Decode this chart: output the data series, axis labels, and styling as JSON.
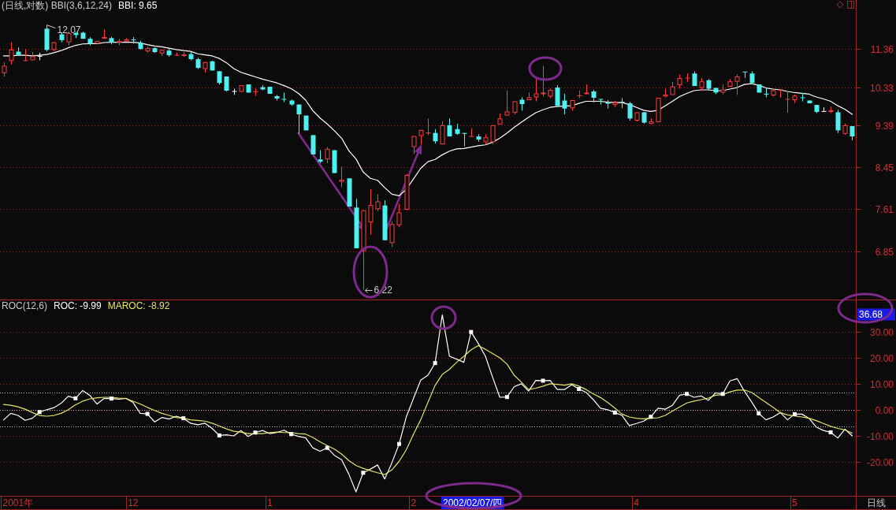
{
  "chart_data": [
    {
      "type": "candlestick",
      "title": "(日线,对数) BBI(3,6,12,24)",
      "ohlc": [
        [
          10.7,
          10.99,
          10.61,
          10.9
        ],
        [
          11.03,
          11.56,
          10.93,
          11.35
        ],
        [
          11.29,
          11.41,
          11.2,
          11.2
        ],
        [
          11.03,
          11.37,
          11.03,
          11.04
        ],
        [
          11.05,
          11.28,
          11.05,
          11.16
        ],
        [
          11.16,
          11.26,
          11.05,
          11.16
        ],
        [
          11.96,
          12.07,
          11.3,
          11.34
        ],
        [
          11.34,
          11.56,
          11.3,
          11.56
        ],
        [
          11.79,
          11.85,
          11.56,
          11.62
        ],
        [
          11.56,
          11.83,
          11.47,
          11.83
        ],
        [
          11.83,
          11.87,
          11.68,
          11.77
        ],
        [
          11.84,
          11.87,
          11.66,
          11.66
        ],
        [
          11.66,
          11.71,
          11.47,
          11.52
        ],
        [
          11.52,
          11.6,
          11.52,
          11.6
        ],
        [
          11.66,
          11.94,
          11.66,
          11.71
        ],
        [
          11.68,
          11.72,
          11.5,
          11.55
        ],
        [
          11.55,
          11.66,
          11.47,
          11.6
        ],
        [
          11.58,
          11.68,
          11.58,
          11.64
        ],
        [
          11.63,
          11.71,
          11.52,
          11.61
        ],
        [
          11.54,
          11.6,
          11.35,
          11.37
        ],
        [
          11.3,
          11.43,
          11.26,
          11.39
        ],
        [
          11.39,
          11.41,
          11.26,
          11.28
        ],
        [
          11.24,
          11.34,
          11.17,
          11.34
        ],
        [
          11.32,
          11.37,
          11.15,
          11.19
        ],
        [
          11.18,
          11.26,
          11.17,
          11.19
        ],
        [
          11.17,
          11.28,
          11.15,
          11.21
        ],
        [
          11.22,
          11.28,
          11.05,
          11.08
        ],
        [
          11.08,
          11.12,
          10.81,
          10.84
        ],
        [
          10.81,
          11.0,
          10.71,
          11.0
        ],
        [
          11.02,
          11.04,
          10.77,
          10.77
        ],
        [
          10.75,
          10.75,
          10.4,
          10.44
        ],
        [
          10.61,
          10.61,
          10.22,
          10.24
        ],
        [
          10.22,
          10.29,
          10.13,
          10.22
        ],
        [
          10.21,
          10.38,
          10.21,
          10.38
        ],
        [
          10.4,
          10.4,
          10.19,
          10.19
        ],
        [
          10.19,
          10.29,
          10.11,
          10.21
        ],
        [
          10.33,
          10.38,
          10.25,
          10.27
        ],
        [
          10.34,
          10.34,
          10.16,
          10.16
        ],
        [
          10.1,
          10.13,
          9.99,
          10.04
        ],
        [
          10.03,
          10.19,
          9.95,
          10.01
        ],
        [
          9.99,
          10.01,
          9.86,
          9.89
        ],
        [
          9.89,
          9.89,
          9.19,
          9.65
        ],
        [
          9.62,
          9.62,
          9.27,
          9.27
        ],
        [
          9.16,
          9.16,
          8.73,
          8.73
        ],
        [
          8.62,
          8.82,
          8.54,
          8.57
        ],
        [
          8.62,
          8.89,
          8.54,
          8.85
        ],
        [
          8.82,
          8.82,
          8.33,
          8.33
        ],
        [
          8.15,
          8.46,
          8.04,
          8.19
        ],
        [
          8.22,
          8.22,
          7.66,
          7.66
        ],
        [
          7.64,
          7.81,
          6.9,
          6.9
        ],
        [
          6.85,
          7.59,
          6.22,
          7.59
        ],
        [
          7.36,
          8.0,
          7.14,
          7.69
        ],
        [
          7.61,
          7.9,
          7.57,
          7.76
        ],
        [
          7.68,
          7.78,
          7.04,
          7.04
        ],
        [
          6.99,
          7.38,
          6.92,
          7.33
        ],
        [
          7.31,
          7.71,
          7.27,
          7.55
        ],
        [
          7.6,
          8.31,
          7.59,
          8.29
        ],
        [
          8.89,
          9.14,
          8.74,
          9.14
        ],
        [
          9.14,
          9.28,
          8.95,
          9.28
        ],
        [
          9.2,
          9.55,
          9.16,
          9.22
        ],
        [
          9.21,
          9.3,
          8.97,
          9.02
        ],
        [
          8.95,
          9.48,
          8.95,
          9.39
        ],
        [
          9.39,
          9.55,
          9.13,
          9.13
        ],
        [
          9.3,
          9.42,
          9.17,
          9.19
        ],
        [
          9.21,
          9.21,
          8.91,
          9.19
        ],
        [
          9.12,
          9.32,
          9.12,
          9.13
        ],
        [
          9.13,
          9.18,
          9.01,
          9.06
        ],
        [
          9.0,
          9.18,
          8.95,
          9.11
        ],
        [
          9.0,
          9.39,
          8.95,
          9.39
        ],
        [
          9.41,
          9.67,
          9.41,
          9.55
        ],
        [
          9.62,
          10.24,
          9.62,
          9.72
        ],
        [
          9.69,
          9.97,
          9.65,
          9.97
        ],
        [
          10.01,
          10.07,
          9.74,
          9.9
        ],
        [
          10.0,
          10.2,
          10.0,
          10.07
        ],
        [
          10.07,
          10.57,
          9.97,
          10.17
        ],
        [
          10.15,
          10.9,
          10.09,
          10.19
        ],
        [
          10.09,
          10.29,
          10.05,
          10.26
        ],
        [
          10.32,
          10.38,
          9.86,
          9.86
        ],
        [
          9.99,
          10.16,
          9.65,
          9.79
        ],
        [
          9.8,
          10.0,
          9.74,
          10.0
        ],
        [
          10.1,
          10.24,
          10.05,
          10.12
        ],
        [
          10.15,
          10.4,
          10.15,
          10.19
        ],
        [
          10.22,
          10.26,
          9.94,
          10.06
        ],
        [
          10.02,
          10.02,
          9.89,
          10.01
        ],
        [
          9.94,
          10.0,
          9.79,
          9.91
        ],
        [
          9.88,
          9.98,
          9.83,
          9.94
        ],
        [
          9.95,
          10.05,
          9.8,
          9.94
        ],
        [
          9.92,
          9.96,
          9.5,
          9.55
        ],
        [
          9.5,
          9.7,
          9.48,
          9.7
        ],
        [
          9.7,
          9.7,
          9.43,
          9.45
        ],
        [
          9.42,
          9.55,
          9.42,
          9.48
        ],
        [
          9.46,
          10.06,
          9.46,
          10.06
        ],
        [
          10.09,
          10.29,
          10.07,
          10.14
        ],
        [
          10.13,
          10.47,
          10.13,
          10.35
        ],
        [
          10.38,
          10.66,
          10.29,
          10.57
        ],
        [
          10.56,
          10.69,
          10.47,
          10.57
        ],
        [
          10.69,
          10.75,
          10.36,
          10.36
        ],
        [
          10.31,
          10.57,
          10.24,
          10.48
        ],
        [
          10.51,
          10.54,
          10.24,
          10.29
        ],
        [
          10.31,
          10.31,
          10.15,
          10.19
        ],
        [
          10.19,
          10.4,
          10.15,
          10.27
        ],
        [
          10.34,
          10.54,
          10.34,
          10.48
        ],
        [
          10.47,
          10.66,
          10.13,
          10.61
        ],
        [
          10.73,
          10.73,
          10.57,
          10.72
        ],
        [
          10.69,
          10.75,
          10.4,
          10.44
        ],
        [
          10.4,
          10.4,
          10.19,
          10.19
        ],
        [
          10.15,
          10.31,
          10.07,
          10.14
        ],
        [
          10.12,
          10.27,
          10.09,
          10.25
        ],
        [
          10.25,
          10.26,
          10.06,
          10.26
        ],
        [
          10.01,
          10.21,
          9.69,
          10.02
        ],
        [
          10.0,
          10.14,
          9.93,
          10.11
        ],
        [
          10.06,
          10.18,
          9.97,
          10.05
        ],
        [
          9.99,
          9.99,
          9.92,
          9.92
        ],
        [
          9.88,
          9.88,
          9.68,
          9.71
        ],
        [
          9.72,
          9.82,
          9.72,
          9.72
        ],
        [
          9.71,
          9.84,
          9.68,
          9.75
        ],
        [
          9.7,
          9.76,
          9.21,
          9.27
        ],
        [
          9.19,
          9.43,
          9.17,
          9.39
        ],
        [
          9.37,
          9.37,
          9.04,
          9.13
        ]
      ],
      "colors": [
        "#ff3c3c",
        "#ff3c3c",
        "#4ff0f0",
        "#ff3c3c",
        "#ff3c3c",
        "#ffffff",
        "#4ff0f0",
        "#ff3c3c",
        "#4ff0f0",
        "#ff3c3c",
        "#4ff0f0",
        "#4ff0f0",
        "#4ff0f0",
        "#ff3c3c",
        "#ff3c3c",
        "#4ff0f0",
        "#ff3c3c",
        "#ff3c3c",
        "#4ff0f0",
        "#4ff0f0",
        "#ff3c3c",
        "#4ff0f0",
        "#ff3c3c",
        "#4ff0f0",
        "#ff3c3c",
        "#ff3c3c",
        "#4ff0f0",
        "#4ff0f0",
        "#ff3c3c",
        "#4ff0f0",
        "#4ff0f0",
        "#4ff0f0",
        "#ffffff",
        "#ff3c3c",
        "#4ff0f0",
        "#ff3c3c",
        "#4ff0f0",
        "#4ff0f0",
        "#4ff0f0",
        "#4ff0f0",
        "#4ff0f0",
        "#4ff0f0",
        "#4ff0f0",
        "#4ff0f0",
        "#4ff0f0",
        "#ff3c3c",
        "#4ff0f0",
        "#ff3c3c",
        "#4ff0f0",
        "#4ff0f0",
        "#ff3c3c",
        "#ff3c3c",
        "#ff3c3c",
        "#4ff0f0",
        "#ff3c3c",
        "#ff3c3c",
        "#ff3c3c",
        "#ff3c3c",
        "#ff3c3c",
        "#ff3c3c",
        "#4ff0f0",
        "#ff3c3c",
        "#4ff0f0",
        "#4ff0f0",
        "#4ff0f0",
        "#ff3c3c",
        "#4ff0f0",
        "#ff3c3c",
        "#ff3c3c",
        "#ff3c3c",
        "#ff3c3c",
        "#ff3c3c",
        "#4ff0f0",
        "#ff3c3c",
        "#ff3c3c",
        "#ff3c3c",
        "#ff3c3c",
        "#4ff0f0",
        "#4ff0f0",
        "#ff3c3c",
        "#ff3c3c",
        "#ff3c3c",
        "#4ff0f0",
        "#4ff0f0",
        "#4ff0f0",
        "#ff3c3c",
        "#4ff0f0",
        "#4ff0f0",
        "#ff3c3c",
        "#4ff0f0",
        "#ff3c3c",
        "#ff3c3c",
        "#ff3c3c",
        "#ff3c3c",
        "#ff3c3c",
        "#ff3c3c",
        "#4ff0f0",
        "#ff3c3c",
        "#4ff0f0",
        "#4ff0f0",
        "#ff3c3c",
        "#ff3c3c",
        "#ff3c3c",
        "#4ff0f0",
        "#4ff0f0",
        "#4ff0f0",
        "#4ff0f0",
        "#ff3c3c",
        "#ff3c3c",
        "#ff3c3c",
        "#ff3c3c",
        "#4ff0f0",
        "#4ff0f0",
        "#4ff0f0",
        "#ffffff",
        "#ff3c3c",
        "#4ff0f0",
        "#ff3c3c",
        "#4ff0f0"
      ],
      "series": [
        {
          "name": "BBI: 9.65",
          "type": "line",
          "color": "#ffffff",
          "values": [
            11.17,
            11.17,
            11.19,
            11.19,
            11.17,
            11.19,
            11.21,
            11.26,
            11.32,
            11.4,
            11.47,
            11.51,
            11.52,
            11.52,
            11.55,
            11.56,
            11.56,
            11.56,
            11.56,
            11.54,
            11.49,
            11.45,
            11.43,
            11.39,
            11.35,
            11.32,
            11.3,
            11.23,
            11.2,
            11.17,
            11.1,
            10.98,
            10.82,
            10.72,
            10.66,
            10.6,
            10.54,
            10.49,
            10.44,
            10.37,
            10.29,
            10.17,
            10.0,
            9.74,
            9.56,
            9.42,
            9.26,
            9.09,
            8.81,
            8.63,
            8.35,
            8.22,
            8.18,
            8.03,
            7.9,
            7.87,
            8.0,
            8.21,
            8.43,
            8.57,
            8.62,
            8.72,
            8.8,
            8.85,
            8.86,
            8.89,
            8.92,
            8.94,
            9.0,
            9.09,
            9.21,
            9.34,
            9.46,
            9.58,
            9.69,
            9.76,
            9.82,
            9.84,
            9.85,
            9.86,
            9.92,
            9.97,
            9.97,
            9.97,
            9.95,
            9.94,
            9.94,
            9.89,
            9.82,
            9.75,
            9.72,
            9.75,
            9.86,
            9.97,
            10.09,
            10.17,
            10.24,
            10.26,
            10.26,
            10.24,
            10.24,
            10.28,
            10.32,
            10.4,
            10.42,
            10.38,
            10.31,
            10.28,
            10.26,
            10.22,
            10.19,
            10.17,
            10.15,
            10.08,
            10.03,
            9.97,
            9.86,
            9.77,
            9.65
          ]
        }
      ],
      "log": true,
      "ylim": [
        6.08,
        12.85
      ],
      "yticks": [
        11.36,
        10.33,
        9.39,
        8.45,
        7.61,
        6.85
      ],
      "grid": "y",
      "legend": "top left",
      "tick_labels": "y",
      "annotations": [
        "12.07",
        "6.22"
      ]
    },
    {
      "type": "line",
      "title": "ROC(12,6)",
      "categories": [
        null,
        null,
        "2001年",
        null,
        null,
        null,
        null,
        null,
        null,
        null,
        null,
        null,
        null,
        null,
        null,
        null,
        null,
        null,
        "12",
        null,
        null,
        null,
        null,
        null,
        null,
        null,
        null,
        null,
        null,
        null,
        null,
        null,
        null,
        null,
        null,
        null,
        null,
        "1",
        null,
        null,
        null,
        null,
        null,
        null,
        null,
        null,
        null,
        null,
        null,
        null,
        null,
        null,
        null,
        null,
        null,
        null,
        null,
        "2",
        null,
        null,
        null,
        null,
        null,
        null,
        null,
        null,
        null,
        null,
        null,
        null,
        null,
        null,
        null,
        null,
        null,
        null,
        null,
        null,
        null,
        null,
        null,
        null,
        null,
        null,
        null,
        null,
        null,
        null,
        "4",
        null,
        null,
        null,
        null,
        null,
        null,
        null,
        null,
        null,
        null,
        null,
        null,
        null,
        null,
        null,
        null,
        null,
        null,
        null,
        null,
        null,
        "5",
        null,
        null,
        null,
        null,
        null,
        null,
        null,
        null
      ],
      "series": [
        {
          "name": "ROC: -9.99",
          "color": "#ffffff",
          "values": [
            -3.8,
            -1.3,
            -2.1,
            -4.0,
            -3.2,
            -0.8,
            0.1,
            0.9,
            2.6,
            5.3,
            4.5,
            7.5,
            5.6,
            2.3,
            4.5,
            4.4,
            4.2,
            4.5,
            2.9,
            -1.3,
            -1.5,
            -4.6,
            -2.9,
            -3.5,
            -2.4,
            -3.2,
            -5.1,
            -5.7,
            -5.1,
            -7.1,
            -9.8,
            -9.6,
            -10.0,
            -7.9,
            -10.2,
            -8.7,
            -7.9,
            -9.1,
            -8.7,
            -7.8,
            -9.3,
            -10.2,
            -10.7,
            -14.6,
            -15.9,
            -14.6,
            -17.5,
            -19.2,
            -24.7,
            -31.6,
            -24.2,
            -22.8,
            -21.2,
            -26.6,
            -20.3,
            -13.1,
            -2.6,
            4.5,
            11.5,
            13.4,
            18.1,
            36.68,
            20.7,
            19.6,
            18.4,
            30.1,
            25.7,
            20.7,
            12.6,
            4.9,
            5.0,
            9.0,
            10.1,
            7.3,
            11.4,
            11.3,
            11.4,
            7.9,
            7.9,
            9.8,
            8.1,
            6.8,
            4.0,
            0.7,
            0.1,
            -1.0,
            -2.1,
            -6.0,
            -5.2,
            -4.3,
            -2.6,
            0.7,
            0.3,
            1.8,
            5.7,
            6.2,
            4.9,
            5.4,
            3.7,
            6.6,
            6.2,
            11.2,
            12.1,
            7.3,
            3.2,
            -1.3,
            -3.8,
            -2.7,
            -1.0,
            -3.8,
            -1.6,
            -1.6,
            -3.2,
            -6.6,
            -7.9,
            -8.6,
            -10.8,
            -7.4,
            -9.99
          ]
        },
        {
          "name": "MAROC: -8.92",
          "color": "#e6e264",
          "values": [
            2.1,
            1.8,
            1.2,
            0.3,
            -1.0,
            -2.1,
            -2.4,
            -2.1,
            -1.3,
            0.1,
            2.0,
            3.4,
            4.3,
            4.7,
            4.9,
            4.9,
            4.6,
            4.4,
            3.4,
            2.3,
            1.0,
            -0.2,
            -1.3,
            -2.1,
            -2.9,
            -3.2,
            -3.8,
            -4.0,
            -4.3,
            -5.1,
            -6.2,
            -7.3,
            -8.2,
            -8.5,
            -9.1,
            -9.1,
            -9.1,
            -8.7,
            -8.5,
            -8.7,
            -8.7,
            -9.1,
            -9.3,
            -10.6,
            -12.3,
            -13.7,
            -15.1,
            -17.0,
            -19.5,
            -21.4,
            -22.5,
            -23.4,
            -24.2,
            -24.9,
            -23.1,
            -19.8,
            -15.3,
            -9.3,
            -3.8,
            2.9,
            9.5,
            13.7,
            15.7,
            18.4,
            20.7,
            23.2,
            24.8,
            23.4,
            21.8,
            20.1,
            17.7,
            13.4,
            10.7,
            7.9,
            8.4,
            9.2,
            10.1,
            9.9,
            9.6,
            10.1,
            9.2,
            7.9,
            6.2,
            4.8,
            2.9,
            0.7,
            -1.6,
            -2.7,
            -3.2,
            -3.4,
            -3.2,
            -3.0,
            -2.1,
            -0.4,
            1.2,
            2.7,
            3.4,
            4.0,
            4.6,
            5.7,
            5.9,
            7.0,
            7.7,
            7.7,
            6.8,
            4.8,
            2.9,
            1.0,
            -1.0,
            -1.9,
            -2.3,
            -2.7,
            -3.2,
            -4.1,
            -5.2,
            -6.3,
            -7.1,
            -7.7,
            -8.92
          ]
        },
        {
          "type": "scatter",
          "color": "#ffffff",
          "marker": "square",
          "values": [
            null,
            null,
            null,
            null,
            null,
            -0.8,
            null,
            null,
            null,
            null,
            4.5,
            null,
            null,
            null,
            null,
            4.4,
            null,
            null,
            null,
            null,
            -1.5,
            null,
            null,
            null,
            null,
            -3.2,
            null,
            null,
            null,
            null,
            -9.8,
            null,
            null,
            null,
            null,
            -8.7,
            null,
            null,
            null,
            null,
            -9.3,
            null,
            null,
            null,
            null,
            -14.6,
            null,
            null,
            null,
            null,
            -24.2,
            null,
            null,
            null,
            null,
            -13.1,
            null,
            null,
            null,
            null,
            18.1,
            null,
            null,
            null,
            null,
            30.1,
            null,
            null,
            null,
            null,
            5.0,
            null,
            null,
            null,
            null,
            11.3,
            null,
            null,
            null,
            null,
            8.1,
            null,
            null,
            null,
            null,
            -1.0,
            null,
            null,
            null,
            null,
            -2.6,
            null,
            null,
            null,
            null,
            6.2,
            null,
            null,
            null,
            null,
            6.2,
            null,
            null,
            null,
            null,
            -1.3,
            null,
            null,
            null,
            null,
            -1.6,
            null,
            null,
            null,
            null,
            -8.6,
            null,
            null,
            null
          ]
        }
      ],
      "ylim": [
        -33.1,
        42.6
      ],
      "yticks": [
        {
          "value": 30,
          "label": "30.00"
        },
        {
          "value": 20,
          "label": "20.00"
        },
        {
          "value": 10,
          "label": "10.00"
        },
        {
          "value": 0,
          "label": "0.00"
        },
        {
          "value": -10,
          "label": "-10.00"
        },
        {
          "value": -20,
          "label": "-20.00"
        }
      ],
      "grid": "y",
      "legend": "top left",
      "ref_lines": [
        {
          "axis": "y",
          "value": 6.6,
          "color": "#b4b4b4",
          "line_style": "dotted"
        },
        {
          "axis": "y",
          "value": 0,
          "color": "#b4b4b4",
          "line_style": "dotted"
        },
        {
          "axis": "y",
          "value": -6.3,
          "color": "#b4b4b4",
          "line_style": "dotted"
        }
      ],
      "annotations": [
        "36.68",
        "2002/02/07/四",
        "日线"
      ]
    }
  ]
}
